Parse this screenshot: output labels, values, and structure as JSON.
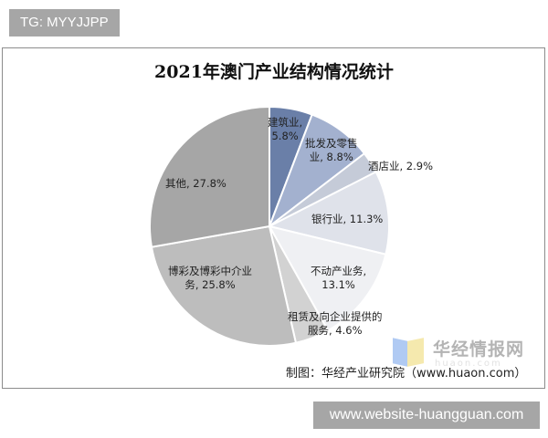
{
  "top_tag": "TG: MYYJJPP",
  "footer_tag": "www.website-huangguan.com",
  "credit": "制图：华经产业研究院（www.huaon.com）",
  "watermark": {
    "name": "华经情报网",
    "sub": "huaon.com"
  },
  "chart_data": {
    "type": "pie",
    "title": "2021年澳门产业结构情况统计",
    "start_angle": "12 o'clock, clockwise",
    "categories": [
      "建筑业",
      "批发及零售业",
      "酒店业",
      "银行业",
      "不动产业务",
      "租赁及向企业提供的服务",
      "博彩及博彩中介业务",
      "其他"
    ],
    "values": [
      5.8,
      8.8,
      2.9,
      11.3,
      13.1,
      4.6,
      25.8,
      27.8
    ],
    "unit": "%",
    "colors": [
      "#6a7fa8",
      "#a3b1cf",
      "#c5cbd8",
      "#dfe2ea",
      "#eff0f3",
      "#d2d2d2",
      "#bdbdbd",
      "#a6a6a6"
    ],
    "labels": [
      [
        "建筑业,",
        "5.8%"
      ],
      [
        "批发及零售",
        "业, 8.8%"
      ],
      [
        "酒店业, 2.9%"
      ],
      [
        "银行业, 11.3%"
      ],
      [
        "不动产业务,",
        "13.1%"
      ],
      [
        "租赁及向企业提供的",
        "服务, 4.6%"
      ],
      [
        "博彩及博彩中介业",
        "务, 25.8%"
      ],
      [
        "其他, 27.8%"
      ]
    ]
  }
}
